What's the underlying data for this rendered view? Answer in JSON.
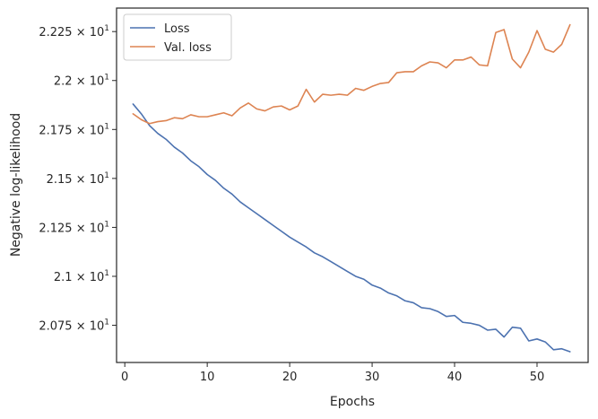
{
  "chart_data": {
    "type": "line",
    "xlabel": "Epochs",
    "ylabel": "Negative log-likelihood",
    "xlim": [
      -1,
      56.2
    ],
    "ylim": [
      20.56,
      22.37
    ],
    "x_ticks": [
      0,
      10,
      20,
      30,
      40,
      50
    ],
    "x_tick_labels": [
      "0",
      "10",
      "20",
      "30",
      "40",
      "50"
    ],
    "y_ticks": [
      20.75,
      21.0,
      21.25,
      21.5,
      21.75,
      22.0,
      22.25
    ],
    "y_tick_labels": [
      {
        "mantissa": "2.075",
        "base": "10",
        "exp": "1"
      },
      {
        "mantissa": "2.1",
        "base": "10",
        "exp": "1"
      },
      {
        "mantissa": "2.125",
        "base": "10",
        "exp": "1"
      },
      {
        "mantissa": "2.15",
        "base": "10",
        "exp": "1"
      },
      {
        "mantissa": "2.175",
        "base": "10",
        "exp": "1"
      },
      {
        "mantissa": "2.2",
        "base": "10",
        "exp": "1"
      },
      {
        "mantissa": "2.225",
        "base": "10",
        "exp": "1"
      }
    ],
    "grid": false,
    "legend_position": "top-left",
    "x": [
      1,
      2,
      3,
      4,
      5,
      6,
      7,
      8,
      9,
      10,
      11,
      12,
      13,
      14,
      15,
      16,
      17,
      18,
      19,
      20,
      21,
      22,
      23,
      24,
      25,
      26,
      27,
      28,
      29,
      30,
      31,
      32,
      33,
      34,
      35,
      36,
      37,
      38,
      39,
      40,
      41,
      42,
      43,
      44,
      45,
      46,
      47,
      48,
      49,
      50,
      51,
      52,
      53,
      54
    ],
    "series": [
      {
        "name": "Loss",
        "color": "#4c72b0",
        "values": [
          21.88,
          21.83,
          21.77,
          21.73,
          21.7,
          21.66,
          21.63,
          21.59,
          21.56,
          21.52,
          21.49,
          21.45,
          21.42,
          21.38,
          21.35,
          21.32,
          21.29,
          21.26,
          21.23,
          21.2,
          21.175,
          21.15,
          21.12,
          21.1,
          21.075,
          21.05,
          21.025,
          21.0,
          20.985,
          20.955,
          20.94,
          20.915,
          20.9,
          20.875,
          20.865,
          20.84,
          20.835,
          20.82,
          20.795,
          20.8,
          20.765,
          20.76,
          20.75,
          20.725,
          20.73,
          20.69,
          20.74,
          20.735,
          20.67,
          20.68,
          20.665,
          20.625,
          20.63,
          20.615
        ]
      },
      {
        "name": "Val. loss",
        "color": "#dd8452",
        "values": [
          21.83,
          21.8,
          21.78,
          21.79,
          21.795,
          21.81,
          21.805,
          21.825,
          21.815,
          21.815,
          21.825,
          21.835,
          21.82,
          21.86,
          21.885,
          21.855,
          21.845,
          21.865,
          21.87,
          21.85,
          21.87,
          21.955,
          21.89,
          21.93,
          21.925,
          21.93,
          21.925,
          21.96,
          21.95,
          21.97,
          21.985,
          21.99,
          22.04,
          22.045,
          22.045,
          22.075,
          22.095,
          22.09,
          22.065,
          22.105,
          22.105,
          22.12,
          22.08,
          22.075,
          22.245,
          22.26,
          22.11,
          22.065,
          22.145,
          22.255,
          22.16,
          22.145,
          22.185,
          22.285
        ]
      }
    ]
  }
}
